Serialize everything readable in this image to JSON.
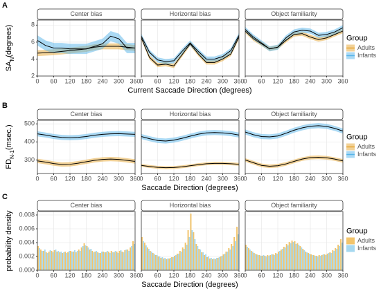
{
  "chart_data": [
    {
      "type": "line",
      "panel_label": "A",
      "ylabel": [
        "SA",
        "N",
        "(degrees)"
      ],
      "xlabel": "Current Saccade Direction (degrees)",
      "legend_title": "Group",
      "line_color": "#000000",
      "xlim": [
        0,
        360
      ],
      "xticks": [
        0,
        60,
        120,
        180,
        240,
        300,
        360
      ],
      "ylim": [
        2,
        8.6
      ],
      "yticks": [
        2,
        4,
        6,
        8
      ],
      "grid": true,
      "x": [
        0,
        30,
        60,
        90,
        120,
        150,
        180,
        210,
        240,
        270,
        300,
        330,
        360
      ],
      "facets": [
        {
          "title": "Center bias",
          "series": [
            {
              "name": "Adults",
              "color": "#E6A532",
              "error": 0.35,
              "values": [
                4.7,
                4.75,
                4.8,
                4.9,
                5.0,
                5.1,
                5.2,
                5.4,
                5.5,
                5.5,
                5.5,
                5.4,
                5.3
              ]
            },
            {
              "name": "Infants",
              "color": "#56B4E9",
              "error": 0.6,
              "values": [
                6.2,
                5.6,
                5.3,
                5.3,
                5.2,
                5.2,
                5.2,
                5.5,
                5.8,
                6.7,
                6.4,
                5.3,
                5.3
              ]
            }
          ]
        },
        {
          "title": "Horizontal bias",
          "series": [
            {
              "name": "Adults",
              "color": "#E6A532",
              "error": 0.25,
              "values": [
                6.5,
                4.2,
                3.3,
                3.4,
                3.2,
                4.5,
                5.8,
                4.6,
                3.6,
                3.6,
                4.0,
                4.6,
                6.6
              ]
            },
            {
              "name": "Infants",
              "color": "#56B4E9",
              "error": 0.3,
              "values": [
                6.7,
                4.8,
                3.9,
                3.7,
                3.8,
                4.9,
                5.9,
                4.9,
                4.0,
                4.0,
                4.3,
                5.0,
                6.8
              ]
            }
          ]
        },
        {
          "title": "Object familiarity",
          "series": [
            {
              "name": "Adults",
              "color": "#E6A532",
              "error": 0.25,
              "values": [
                7.3,
                6.4,
                5.8,
                5.2,
                5.4,
                6.2,
                6.9,
                7.0,
                6.6,
                6.3,
                6.5,
                6.9,
                7.3
              ]
            },
            {
              "name": "Infants",
              "color": "#56B4E9",
              "error": 0.3,
              "values": [
                7.5,
                6.6,
                5.9,
                5.2,
                5.4,
                6.5,
                7.2,
                7.4,
                7.3,
                6.8,
                6.9,
                7.2,
                7.7
              ]
            }
          ]
        }
      ]
    },
    {
      "type": "line",
      "panel_label": "B",
      "ylabel": [
        "FD",
        "N-1",
        "(msec.)"
      ],
      "xlabel": "Saccade Direction (degrees)",
      "legend_title": "Group",
      "line_color": "#000000",
      "xlim": [
        0,
        360
      ],
      "xticks": [
        0,
        60,
        120,
        180,
        240,
        300,
        360
      ],
      "ylim": [
        225,
        520
      ],
      "yticks": [
        300,
        400,
        500
      ],
      "grid": true,
      "x": [
        0,
        30,
        60,
        90,
        120,
        150,
        180,
        210,
        240,
        270,
        300,
        330,
        360
      ],
      "facets": [
        {
          "title": "Center bias",
          "series": [
            {
              "name": "Adults",
              "color": "#E6A532",
              "error": 12,
              "values": [
                295,
                288,
                280,
                275,
                276,
                282,
                290,
                298,
                303,
                305,
                303,
                298,
                292
              ]
            },
            {
              "name": "Infants",
              "color": "#56B4E9",
              "error": 14,
              "values": [
                445,
                438,
                430,
                425,
                423,
                425,
                430,
                437,
                442,
                445,
                446,
                444,
                442
              ]
            }
          ]
        },
        {
          "title": "Horizontal bias",
          "series": [
            {
              "name": "Adults",
              "color": "#E6A532",
              "error": 8,
              "values": [
                270,
                264,
                259,
                257,
                258,
                262,
                268,
                274,
                279,
                281,
                281,
                279,
                276
              ]
            },
            {
              "name": "Infants",
              "color": "#56B4E9",
              "error": 14,
              "values": [
                430,
                418,
                408,
                405,
                410,
                420,
                432,
                443,
                450,
                452,
                450,
                446,
                438
              ]
            }
          ]
        },
        {
          "title": "Object familiarity",
          "series": [
            {
              "name": "Adults",
              "color": "#E6A532",
              "error": 10,
              "values": [
                300,
                285,
                270,
                265,
                268,
                278,
                292,
                305,
                313,
                315,
                312,
                305,
                295
              ]
            },
            {
              "name": "Infants",
              "color": "#56B4E9",
              "error": 14,
              "values": [
                455,
                440,
                430,
                428,
                433,
                448,
                465,
                478,
                487,
                490,
                486,
                475,
                460
              ]
            }
          ]
        }
      ]
    },
    {
      "type": "histogram",
      "panel_label": "C",
      "ylabel": [
        "probability density"
      ],
      "xlabel": "Saccade Direction (degrees)",
      "legend_title": "Group",
      "xlim": [
        0,
        360
      ],
      "xticks": [
        0,
        60,
        120,
        180,
        240,
        300,
        360
      ],
      "ylim": [
        0,
        0.0085
      ],
      "yticks": [
        {
          "value": 0,
          "label": "0.000"
        },
        {
          "value": 0.002,
          "label": "0.002"
        },
        {
          "value": 0.004,
          "label": "0.004"
        },
        {
          "value": 0.006,
          "label": "0.006"
        },
        {
          "value": 0.008,
          "label": "0.008"
        }
      ],
      "grid": true,
      "bins": [
        0,
        10,
        20,
        30,
        40,
        50,
        60,
        70,
        80,
        90,
        100,
        110,
        120,
        130,
        140,
        150,
        160,
        170,
        180,
        190,
        200,
        210,
        220,
        230,
        240,
        250,
        260,
        270,
        280,
        290,
        300,
        310,
        320,
        330,
        340,
        350,
        360
      ],
      "facets": [
        {
          "title": "Center bias",
          "series": [
            {
              "name": "Adults",
              "color": "#F2C46B",
              "values": [
                0.0035,
                0.003,
                0.0028,
                0.0026,
                0.0027,
                0.0028,
                0.0029,
                0.0027,
                0.0026,
                0.0025,
                0.0027,
                0.0026,
                0.0028,
                0.0027,
                0.0026,
                0.003,
                0.0033,
                0.0039,
                0.0035,
                0.003,
                0.0028,
                0.0027,
                0.0026,
                0.0025,
                0.0027,
                0.0026,
                0.0027,
                0.0028,
                0.0026,
                0.0027,
                0.0028,
                0.0027,
                0.0029,
                0.003,
                0.0033,
                0.0042
              ]
            },
            {
              "name": "Infants",
              "color": "#A6D8F0",
              "values": [
                0.0032,
                0.0028,
                0.003,
                0.0025,
                0.0029,
                0.0026,
                0.003,
                0.0028,
                0.0027,
                0.0026,
                0.0025,
                0.0028,
                0.0027,
                0.0029,
                0.0028,
                0.0028,
                0.0035,
                0.0036,
                0.0033,
                0.0031,
                0.0026,
                0.0028,
                0.0025,
                0.0027,
                0.0026,
                0.0028,
                0.0025,
                0.0026,
                0.0028,
                0.0025,
                0.0029,
                0.0026,
                0.003,
                0.0028,
                0.0035,
                0.0038
              ]
            }
          ]
        },
        {
          "title": "Horizontal bias",
          "series": [
            {
              "name": "Adults",
              "color": "#F2C46B",
              "values": [
                0.0048,
                0.004,
                0.0033,
                0.0028,
                0.0025,
                0.0022,
                0.002,
                0.0018,
                0.0017,
                0.0016,
                0.0017,
                0.0019,
                0.0021,
                0.0024,
                0.0028,
                0.0033,
                0.004,
                0.0058,
                0.0082,
                0.0055,
                0.0038,
                0.0031,
                0.0026,
                0.0022,
                0.0019,
                0.0017,
                0.0016,
                0.0016,
                0.0018,
                0.002,
                0.0023,
                0.0027,
                0.0032,
                0.0038,
                0.0048,
                0.0063
              ]
            },
            {
              "name": "Infants",
              "color": "#A6D8F0",
              "values": [
                0.0042,
                0.0036,
                0.0031,
                0.0027,
                0.0024,
                0.0022,
                0.002,
                0.0019,
                0.0018,
                0.0017,
                0.0018,
                0.0019,
                0.0022,
                0.0024,
                0.0027,
                0.0031,
                0.0037,
                0.0048,
                0.0058,
                0.0045,
                0.0035,
                0.003,
                0.0026,
                0.0023,
                0.002,
                0.0018,
                0.0017,
                0.0018,
                0.0019,
                0.0021,
                0.0024,
                0.0027,
                0.003,
                0.0035,
                0.0042,
                0.0052
              ]
            }
          ]
        },
        {
          "title": "Object familiarity",
          "series": [
            {
              "name": "Adults",
              "color": "#F2C46B",
              "values": [
                0.0037,
                0.0032,
                0.0028,
                0.0025,
                0.0023,
                0.0022,
                0.0021,
                0.0021,
                0.0022,
                0.0022,
                0.0023,
                0.0025,
                0.0027,
                0.003,
                0.0034,
                0.0038,
                0.0041,
                0.0043,
                0.0042,
                0.0039,
                0.0035,
                0.0031,
                0.0027,
                0.0025,
                0.0023,
                0.0022,
                0.0021,
                0.0022,
                0.0022,
                0.0023,
                0.0024,
                0.0026,
                0.0029,
                0.0032,
                0.0037,
                0.0045
              ]
            },
            {
              "name": "Infants",
              "color": "#A6D8F0",
              "values": [
                0.0034,
                0.003,
                0.0027,
                0.0024,
                0.0022,
                0.0021,
                0.0022,
                0.002,
                0.0021,
                0.0023,
                0.0022,
                0.0024,
                0.0028,
                0.0031,
                0.0033,
                0.0036,
                0.0039,
                0.0041,
                0.0038,
                0.0037,
                0.0033,
                0.0029,
                0.0026,
                0.0024,
                0.0022,
                0.0021,
                0.002,
                0.0021,
                0.0023,
                0.0022,
                0.0025,
                0.0025,
                0.0028,
                0.0031,
                0.0035,
                0.004
              ]
            }
          ]
        }
      ]
    }
  ]
}
